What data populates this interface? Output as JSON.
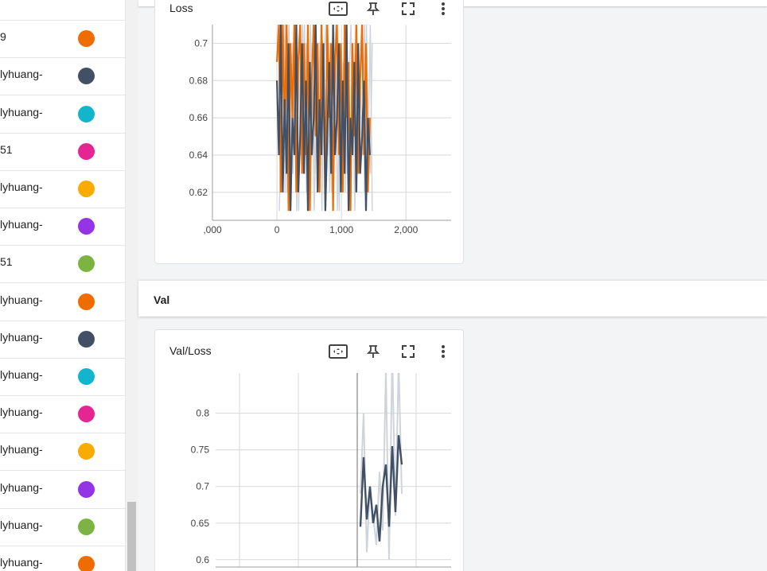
{
  "sidebar": {
    "runs": [
      {
        "label": "",
        "color": "#ffffff",
        "partial": true
      },
      {
        "label": "9",
        "color": "#ef6c00"
      },
      {
        "label": "lyhuang-",
        "color": "#425066"
      },
      {
        "label": "lyhuang-",
        "color": "#12b5cb"
      },
      {
        "label": "51",
        "color": "#e52592"
      },
      {
        "label": "lyhuang-",
        "color": "#f9ab00"
      },
      {
        "label": "lyhuang-",
        "color": "#9334e6"
      },
      {
        "label": "51",
        "color": "#7cb342"
      },
      {
        "label": "lyhuang-",
        "color": "#ef6c00"
      },
      {
        "label": "lyhuang-",
        "color": "#425066"
      },
      {
        "label": "lyhuang-",
        "color": "#12b5cb"
      },
      {
        "label": "lyhuang-",
        "color": "#e52592"
      },
      {
        "label": "lyhuang-",
        "color": "#f9ab00"
      },
      {
        "label": "lyhuang-",
        "color": "#9334e6"
      },
      {
        "label": "lyhuang-",
        "color": "#7cb342"
      },
      {
        "label": "lyhuang-",
        "color": "#ef6c00"
      }
    ]
  },
  "cards": {
    "loss": {
      "title": "Loss",
      "tools": [
        "fit-domain-icon",
        "pin-icon",
        "fullscreen-icon",
        "more-vert-icon"
      ]
    },
    "val_loss": {
      "title": "Val/Loss",
      "tools": [
        "fit-domain-icon",
        "pin-icon",
        "fullscreen-icon",
        "more-vert-icon"
      ]
    }
  },
  "sections": {
    "val": "Val"
  },
  "chart_data": [
    {
      "type": "line",
      "title": "Loss",
      "xlabel": "",
      "ylabel": "",
      "x_ticks": [
        ",000",
        "0",
        "1,000",
        "2,000"
      ],
      "y_ticks": [
        "0.62",
        "0.64",
        "0.66",
        "0.68",
        "0.7"
      ],
      "xlim": [
        -1000,
        2700
      ],
      "ylim": [
        0.605,
        0.71
      ],
      "grid": true,
      "series": [
        {
          "color": "#ef6c00",
          "x": [
            0,
            30,
            60,
            90,
            120,
            150,
            180,
            210,
            240,
            270,
            300,
            330,
            360,
            390,
            420,
            450,
            480,
            510,
            540,
            570,
            600,
            630,
            660,
            690,
            720,
            750,
            780,
            810,
            840,
            870,
            900,
            930,
            960,
            990,
            1020,
            1050,
            1080,
            1110,
            1140,
            1170,
            1200,
            1230,
            1260,
            1290,
            1320,
            1350,
            1380,
            1410,
            1440
          ],
          "y": [
            0.69,
            0.71,
            0.62,
            0.71,
            0.65,
            0.71,
            0.61,
            0.7,
            0.66,
            0.71,
            0.62,
            0.69,
            0.71,
            0.63,
            0.7,
            0.64,
            0.71,
            0.61,
            0.68,
            0.71,
            0.65,
            0.7,
            0.62,
            0.71,
            0.67,
            0.63,
            0.71,
            0.66,
            0.7,
            0.61,
            0.69,
            0.71,
            0.64,
            0.7,
            0.62,
            0.71,
            0.66,
            0.69,
            0.61,
            0.7,
            0.65,
            0.71,
            0.63,
            0.68,
            0.71,
            0.64,
            0.7,
            0.62,
            0.66
          ]
        },
        {
          "color": "#425066",
          "x": [
            0,
            30,
            60,
            90,
            120,
            150,
            180,
            210,
            240,
            270,
            300,
            330,
            360,
            390,
            420,
            450,
            480,
            510,
            540,
            570,
            600,
            630,
            660,
            690,
            720,
            750,
            780,
            810,
            840,
            870,
            900,
            930,
            960,
            990,
            1020,
            1050,
            1080,
            1110,
            1140,
            1170,
            1200,
            1230,
            1260,
            1290,
            1320,
            1350,
            1380,
            1410,
            1440
          ],
          "y": [
            0.68,
            0.64,
            0.71,
            0.62,
            0.67,
            0.63,
            0.7,
            0.61,
            0.66,
            0.64,
            0.71,
            0.62,
            0.65,
            0.7,
            0.63,
            0.68,
            0.61,
            0.69,
            0.64,
            0.66,
            0.71,
            0.62,
            0.67,
            0.64,
            0.7,
            0.61,
            0.65,
            0.69,
            0.63,
            0.71,
            0.64,
            0.66,
            0.7,
            0.62,
            0.68,
            0.63,
            0.71,
            0.61,
            0.66,
            0.64,
            0.69,
            0.62,
            0.7,
            0.63,
            0.65,
            0.68,
            0.61,
            0.66,
            0.64
          ]
        }
      ]
    },
    {
      "type": "line",
      "title": "Val/Loss",
      "xlabel": "",
      "ylabel": "",
      "y_ticks": [
        "0.6",
        "0.65",
        "0.7",
        "0.75",
        "0.8"
      ],
      "ylim": [
        0.59,
        0.855
      ],
      "grid": true,
      "series": [
        {
          "color": "#cfd4dc",
          "name": "",
          "x": [
            0,
            1,
            2,
            3,
            4,
            5,
            6,
            7,
            8,
            9,
            10,
            11,
            12,
            13
          ],
          "y": [
            0.69,
            0.8,
            0.61,
            0.7,
            0.66,
            0.62,
            0.72,
            0.64,
            0.86,
            0.6,
            0.88,
            0.66,
            0.87,
            0.69
          ]
        },
        {
          "color": "#425066",
          "name": "",
          "x": [
            0,
            1,
            2,
            3,
            4,
            5,
            6,
            7,
            8,
            9,
            10,
            11,
            12,
            13
          ],
          "y": [
            0.645,
            0.74,
            0.655,
            0.7,
            0.65,
            0.675,
            0.625,
            0.7,
            0.73,
            0.645,
            0.755,
            0.665,
            0.77,
            0.73
          ]
        }
      ]
    }
  ]
}
